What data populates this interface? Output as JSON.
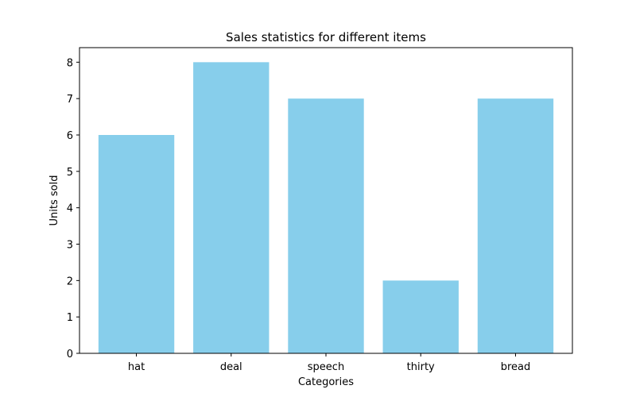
{
  "chart_data": {
    "type": "bar",
    "title": "Sales statistics for different items",
    "xlabel": "Categories",
    "ylabel": "Units sold",
    "categories": [
      "hat",
      "deal",
      "speech",
      "thirty",
      "bread"
    ],
    "values": [
      6,
      8,
      7,
      2,
      7
    ],
    "ylim": [
      0,
      8.4
    ],
    "yticks": [
      0,
      1,
      2,
      3,
      4,
      5,
      6,
      7,
      8
    ],
    "bar_color": "#87CEEB",
    "grid": false,
    "legend": "none"
  }
}
